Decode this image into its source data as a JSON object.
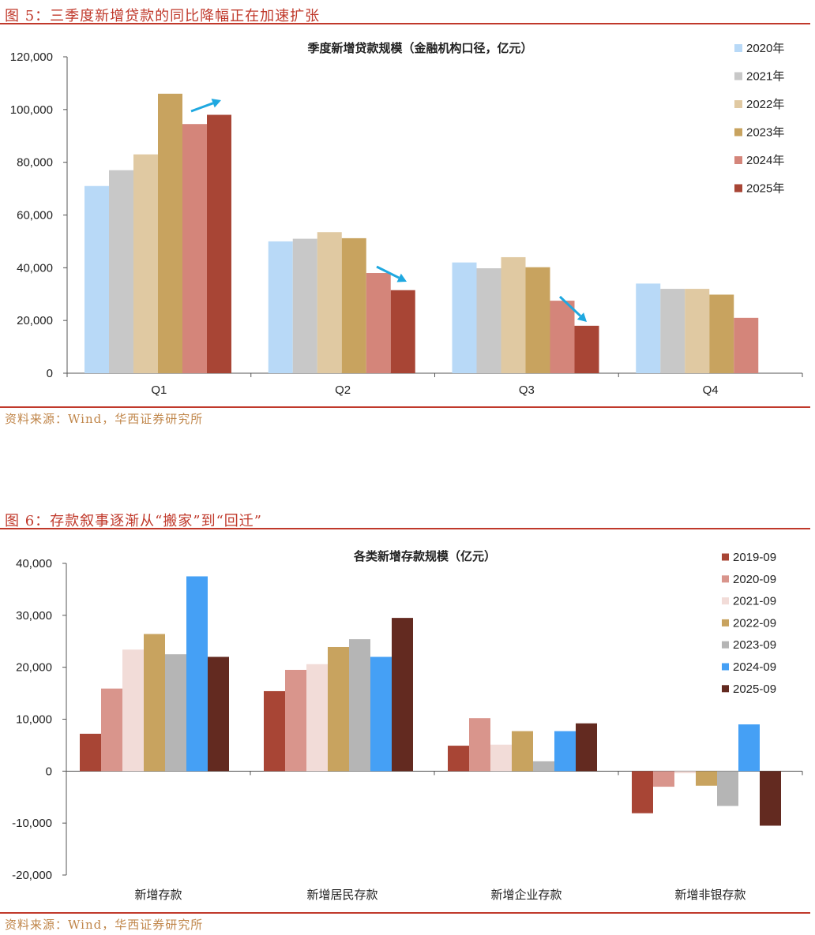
{
  "figures": [
    {
      "caption": "图 5：三季度新增贷款的同比降幅正在加速扩张",
      "source": "资料来源：Wind，华西证券研究所"
    },
    {
      "caption": "图 6：存款叙事逐渐从“搬家”到“回迁”",
      "source": "资料来源：Wind，华西证券研究所"
    }
  ],
  "chart_data": [
    {
      "type": "bar",
      "title": "季度新增贷款规模（金融机构口径，亿元）",
      "xlabel": "",
      "ylabel": "",
      "categories": [
        "Q1",
        "Q2",
        "Q3",
        "Q4"
      ],
      "ylim": [
        0,
        120000
      ],
      "yticks": [
        "0",
        "20,000",
        "40,000",
        "60,000",
        "80,000",
        "100,000",
        "120,000"
      ],
      "legend_position": "right",
      "grid": false,
      "series": [
        {
          "name": "2020年",
          "color": "#b8d9f7",
          "values": [
            71000,
            50000,
            42000,
            34000
          ]
        },
        {
          "name": "2021年",
          "color": "#c8c8c8",
          "values": [
            77000,
            51000,
            39800,
            32000
          ]
        },
        {
          "name": "2022年",
          "color": "#e0c9a2",
          "values": [
            83000,
            53500,
            44000,
            32000
          ]
        },
        {
          "name": "2023年",
          "color": "#c8a35f",
          "values": [
            106000,
            51200,
            40200,
            29800
          ]
        },
        {
          "name": "2024年",
          "color": "#d4857a",
          "values": [
            94500,
            38000,
            27500,
            21000
          ]
        },
        {
          "name": "2025年",
          "color": "#a84535",
          "values": [
            98000,
            31500,
            18000,
            null
          ]
        }
      ],
      "annotations": [
        {
          "type": "arrow",
          "color": "#1fa8e0",
          "direction": "up",
          "category": "Q1"
        },
        {
          "type": "arrow",
          "color": "#1fa8e0",
          "direction": "down",
          "category": "Q2"
        },
        {
          "type": "arrow",
          "color": "#1fa8e0",
          "direction": "down",
          "category": "Q3"
        }
      ]
    },
    {
      "type": "bar",
      "title": "各类新增存款规模（亿元）",
      "xlabel": "",
      "ylabel": "",
      "categories": [
        "新增存款",
        "新增居民存款",
        "新增企业存款",
        "新增非银存款"
      ],
      "ylim": [
        -20000,
        40000
      ],
      "yticks": [
        "-20,000",
        "-10,000",
        "0",
        "10,000",
        "20,000",
        "30,000",
        "40,000"
      ],
      "legend_position": "right",
      "grid": false,
      "series": [
        {
          "name": "2019-09",
          "color": "#a84535",
          "values": [
            7200,
            15400,
            4900,
            -8100
          ]
        },
        {
          "name": "2020-09",
          "color": "#d9958c",
          "values": [
            15900,
            19500,
            10200,
            -3000
          ]
        },
        {
          "name": "2021-09",
          "color": "#f2dcd8",
          "values": [
            23400,
            20600,
            5100,
            -400
          ]
        },
        {
          "name": "2022-09",
          "color": "#c8a35f",
          "values": [
            26400,
            23900,
            7700,
            -2800
          ]
        },
        {
          "name": "2023-09",
          "color": "#b5b5b5",
          "values": [
            22500,
            25400,
            1900,
            -6700
          ]
        },
        {
          "name": "2024-09",
          "color": "#45a0f5",
          "values": [
            37500,
            22000,
            7700,
            9000
          ]
        },
        {
          "name": "2025-09",
          "color": "#632a20",
          "values": [
            22000,
            29500,
            9200,
            -10500
          ]
        }
      ]
    }
  ]
}
